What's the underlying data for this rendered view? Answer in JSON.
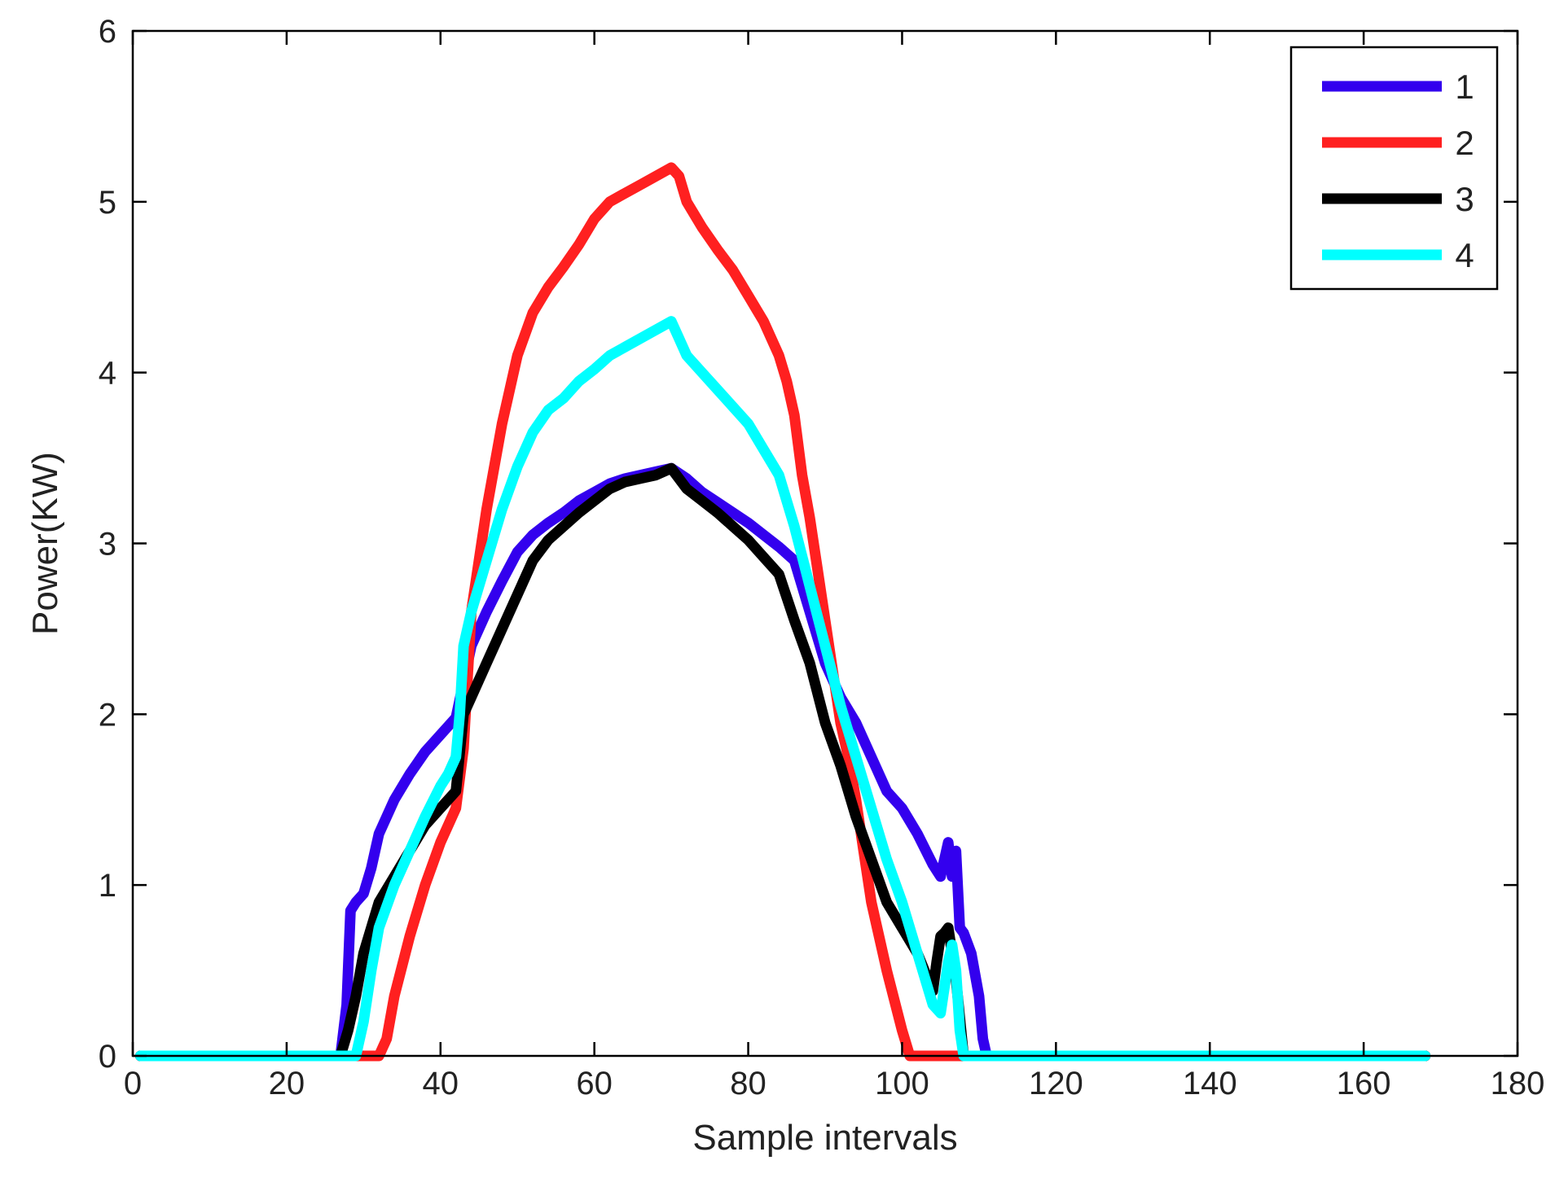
{
  "chart_data": {
    "type": "line",
    "title": "",
    "xlabel": "Sample intervals",
    "ylabel": "Power(KW)",
    "xlim": [
      0,
      180
    ],
    "ylim": [
      0,
      6
    ],
    "xticks": [
      0,
      20,
      40,
      60,
      80,
      100,
      120,
      140,
      160,
      180
    ],
    "yticks": [
      0,
      1,
      2,
      3,
      4,
      5,
      6
    ],
    "xtick_labels": [
      "0",
      "20",
      "40",
      "60",
      "80",
      "100",
      "120",
      "140",
      "160",
      "180"
    ],
    "ytick_labels": [
      "0",
      "1",
      "2",
      "3",
      "4",
      "5",
      "6"
    ],
    "grid": false,
    "legend_position": "top-right",
    "series": [
      {
        "name": "1",
        "color": "#3300ee",
        "x": [
          1,
          27,
          27.8,
          28.3,
          29,
          30,
          31,
          32,
          34,
          36,
          38,
          40,
          42,
          44,
          46,
          48,
          50,
          52,
          54,
          56,
          58,
          60,
          62,
          64,
          66,
          68,
          70,
          72,
          74,
          76,
          78,
          80,
          82,
          84,
          86,
          88,
          90,
          92,
          94,
          96,
          98,
          100,
          102,
          104,
          105,
          105.5,
          106,
          106.5,
          107,
          107.5,
          108,
          109,
          110,
          110.5,
          111,
          168
        ],
        "values": [
          0,
          0,
          0.3,
          0.85,
          0.9,
          0.95,
          1.1,
          1.3,
          1.5,
          1.65,
          1.78,
          1.88,
          1.98,
          2.4,
          2.6,
          2.78,
          2.95,
          3.05,
          3.12,
          3.18,
          3.25,
          3.3,
          3.35,
          3.38,
          3.4,
          3.42,
          3.44,
          3.38,
          3.3,
          3.24,
          3.18,
          3.12,
          3.05,
          2.98,
          2.9,
          2.6,
          2.3,
          2.1,
          1.95,
          1.75,
          1.55,
          1.45,
          1.3,
          1.12,
          1.05,
          1.15,
          1.25,
          1.05,
          1.2,
          0.75,
          0.72,
          0.6,
          0.35,
          0.1,
          0,
          0
        ]
      },
      {
        "name": "2",
        "color": "#ff2020",
        "x": [
          1,
          32,
          33,
          34,
          36,
          38,
          40,
          42,
          43,
          44,
          46,
          48,
          50,
          52,
          54,
          56,
          58,
          60,
          62,
          64,
          66,
          68,
          70,
          71,
          72,
          74,
          76,
          78,
          80,
          82,
          84,
          85,
          86,
          87,
          88,
          89,
          90,
          91,
          92,
          93,
          94,
          95,
          96,
          98,
          100,
          101,
          102,
          168
        ],
        "values": [
          0,
          0,
          0.1,
          0.35,
          0.7,
          1.0,
          1.25,
          1.45,
          1.8,
          2.6,
          3.2,
          3.7,
          4.1,
          4.35,
          4.5,
          4.62,
          4.75,
          4.9,
          5.0,
          5.05,
          5.1,
          5.15,
          5.2,
          5.15,
          5.0,
          4.85,
          4.72,
          4.6,
          4.45,
          4.3,
          4.1,
          3.95,
          3.75,
          3.4,
          3.15,
          2.85,
          2.55,
          2.25,
          1.95,
          1.75,
          1.5,
          1.2,
          0.9,
          0.5,
          0.15,
          0,
          0,
          0
        ]
      },
      {
        "name": "3",
        "color": "#000000",
        "x": [
          1,
          27,
          28,
          29,
          30,
          32,
          34,
          36,
          38,
          40,
          41,
          42,
          43,
          44,
          46,
          48,
          50,
          52,
          54,
          56,
          58,
          60,
          62,
          64,
          66,
          68,
          70,
          72,
          74,
          76,
          78,
          80,
          82,
          84,
          86,
          88,
          90,
          92,
          94,
          96,
          98,
          100,
          102,
          104,
          104.5,
          105,
          105.5,
          106,
          107,
          108,
          109,
          168
        ],
        "values": [
          0,
          0,
          0.15,
          0.35,
          0.6,
          0.9,
          1.05,
          1.2,
          1.35,
          1.45,
          1.5,
          1.55,
          2.0,
          2.1,
          2.3,
          2.5,
          2.7,
          2.9,
          3.02,
          3.1,
          3.18,
          3.25,
          3.32,
          3.36,
          3.38,
          3.4,
          3.44,
          3.32,
          3.25,
          3.18,
          3.1,
          3.02,
          2.92,
          2.82,
          2.55,
          2.3,
          1.95,
          1.7,
          1.4,
          1.15,
          0.9,
          0.75,
          0.6,
          0.38,
          0.55,
          0.7,
          0.72,
          0.75,
          0.45,
          0,
          0,
          0
        ]
      },
      {
        "name": "4",
        "color": "#00ffff",
        "x": [
          1,
          29,
          30,
          31,
          32,
          34,
          36,
          38,
          40,
          41,
          42,
          42.5,
          43,
          44,
          46,
          48,
          50,
          52,
          54,
          56,
          58,
          60,
          62,
          64,
          66,
          68,
          70,
          71,
          72,
          74,
          76,
          78,
          80,
          82,
          84,
          86,
          88,
          90,
          92,
          94,
          96,
          98,
          100,
          102,
          103,
          104,
          105,
          105.5,
          106,
          106.5,
          107,
          107.5,
          108,
          168
        ],
        "values": [
          0,
          0,
          0.2,
          0.5,
          0.75,
          1.0,
          1.2,
          1.4,
          1.58,
          1.65,
          1.75,
          2.0,
          2.4,
          2.6,
          2.9,
          3.2,
          3.45,
          3.65,
          3.78,
          3.85,
          3.95,
          4.02,
          4.1,
          4.15,
          4.2,
          4.25,
          4.3,
          4.2,
          4.1,
          4.0,
          3.9,
          3.8,
          3.7,
          3.55,
          3.4,
          3.1,
          2.75,
          2.4,
          2.05,
          1.75,
          1.45,
          1.15,
          0.9,
          0.6,
          0.45,
          0.3,
          0.25,
          0.4,
          0.55,
          0.65,
          0.5,
          0.15,
          0,
          0
        ]
      }
    ]
  }
}
